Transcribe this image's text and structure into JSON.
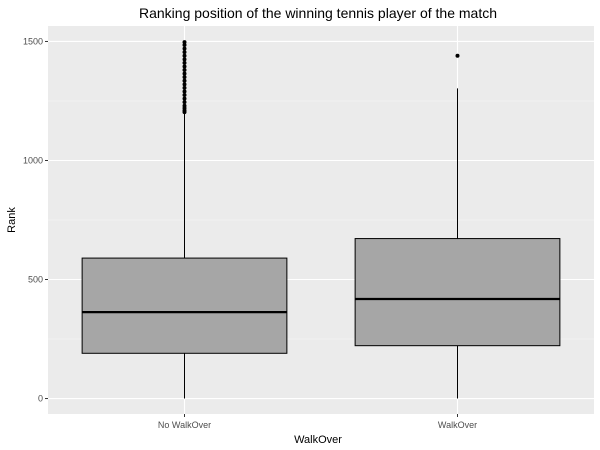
{
  "chart_data": {
    "type": "boxplot",
    "title": "Ranking position of the winning tennis player of the match",
    "xlabel": "WalkOver",
    "ylabel": "Rank",
    "categories": [
      "No WalkOver",
      "WalkOver"
    ],
    "ylim": [
      -65,
      1565
    ],
    "yticks": [
      0,
      500,
      1000,
      1500
    ],
    "grid": true,
    "legend": "none",
    "boxes": [
      {
        "category": "No WalkOver",
        "min": 0,
        "q1": 190,
        "median": 363,
        "q3": 590,
        "max": 1200,
        "outliers": [
          1203,
          1210,
          1220,
          1230,
          1245,
          1260,
          1275,
          1290,
          1305,
          1320,
          1335,
          1350,
          1365,
          1380,
          1395,
          1410,
          1425,
          1440,
          1455,
          1470,
          1485,
          1497
        ]
      },
      {
        "category": "WalkOver",
        "min": 0,
        "q1": 222,
        "median": 418,
        "q3": 672,
        "max": 1303,
        "outliers": [
          1440
        ]
      }
    ],
    "colors": {
      "panel": "#ebebeb",
      "grid_major": "#ffffff",
      "grid_minor": "#f5f5f5",
      "box_fill": "#a6a6a6",
      "box_line": "#000000"
    }
  }
}
